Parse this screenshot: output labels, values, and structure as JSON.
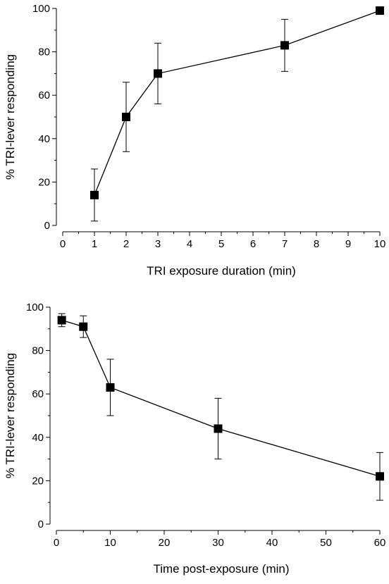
{
  "chart_data": [
    {
      "type": "line",
      "title": "",
      "xlabel": "TRI exposure duration (min)",
      "ylabel": "% TRI-lever responding",
      "xlim": [
        0,
        10
      ],
      "ylim": [
        0,
        100
      ],
      "xticks": [
        0,
        1,
        2,
        3,
        4,
        5,
        6,
        7,
        8,
        9,
        10
      ],
      "yticks": [
        0,
        20,
        40,
        60,
        80,
        100
      ],
      "grid": false,
      "series": [
        {
          "marker": "square",
          "color": "#000000",
          "points": [
            {
              "x": 1,
              "y": 14,
              "err_low": 2,
              "err_high": 26
            },
            {
              "x": 2,
              "y": 50,
              "err_low": 34,
              "err_high": 66
            },
            {
              "x": 3,
              "y": 70,
              "err_low": 56,
              "err_high": 84
            },
            {
              "x": 7,
              "y": 83,
              "err_low": 71,
              "err_high": 95
            },
            {
              "x": 10,
              "y": 99,
              "err_low": 99,
              "err_high": 99
            }
          ]
        }
      ]
    },
    {
      "type": "line",
      "title": "",
      "xlabel": "Time post-exposure (min)",
      "ylabel": "% TRI-lever responding",
      "xlim": [
        0,
        60
      ],
      "ylim": [
        0,
        100
      ],
      "xticks": [
        0,
        10,
        20,
        30,
        40,
        50,
        60
      ],
      "yticks": [
        0,
        20,
        40,
        60,
        80,
        100
      ],
      "grid": false,
      "series": [
        {
          "marker": "square",
          "color": "#000000",
          "points": [
            {
              "x": 1,
              "y": 94,
              "err_low": 91,
              "err_high": 97
            },
            {
              "x": 5,
              "y": 91,
              "err_low": 86,
              "err_high": 96
            },
            {
              "x": 10,
              "y": 63,
              "err_low": 50,
              "err_high": 76
            },
            {
              "x": 30,
              "y": 44,
              "err_low": 30,
              "err_high": 58
            },
            {
              "x": 60,
              "y": 22,
              "err_low": 11,
              "err_high": 33
            }
          ]
        }
      ]
    }
  ]
}
